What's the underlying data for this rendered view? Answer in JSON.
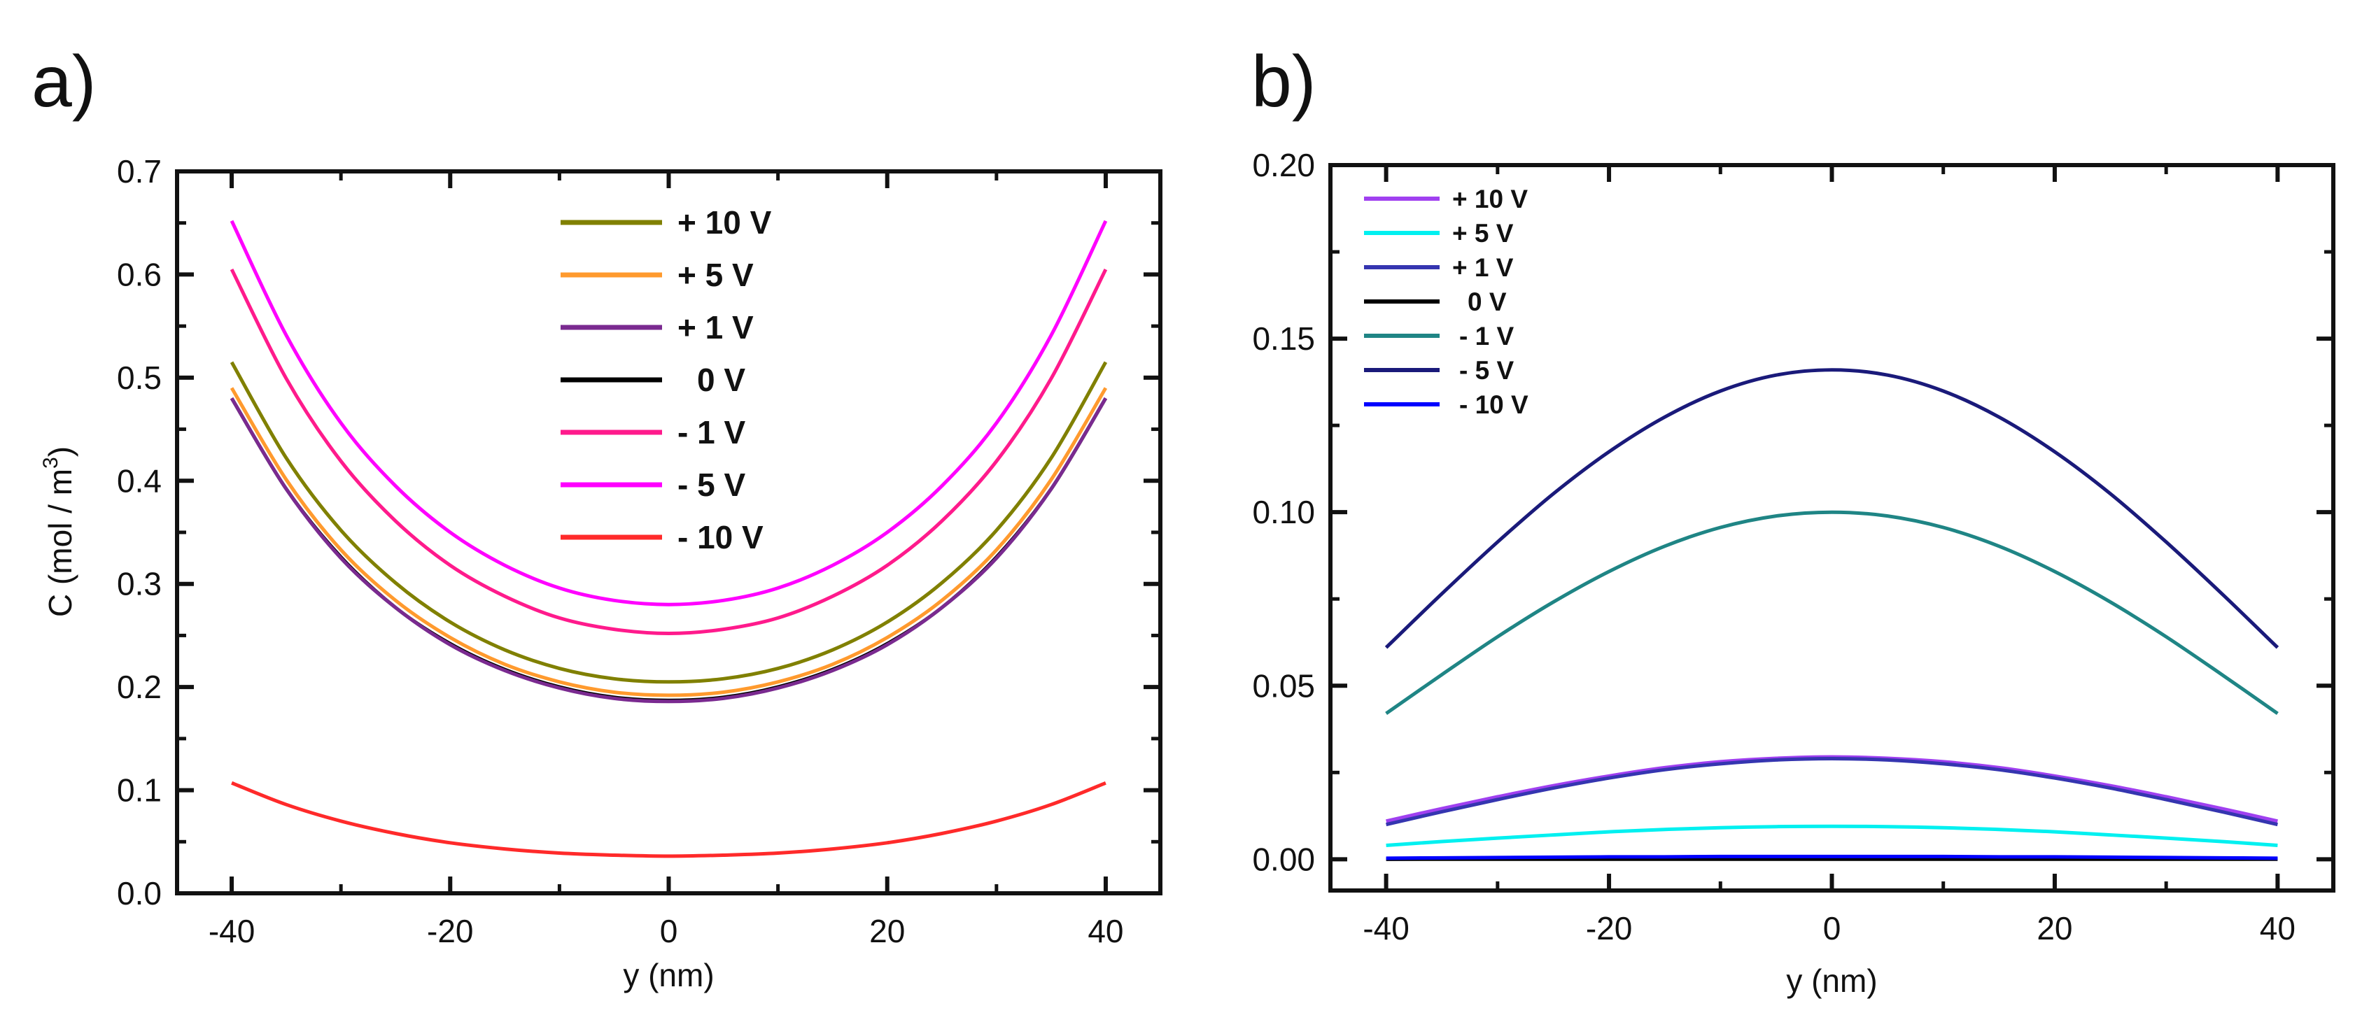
{
  "chart_data": [
    {
      "panel_label": "a)",
      "type": "line",
      "title": "",
      "xlabel": "y (nm)",
      "ylabel": "C (mol / m",
      "ylabel_superscript": "3",
      "ylabel_suffix": ")",
      "xlim": [
        -45,
        45
      ],
      "ylim": [
        0,
        0.7
      ],
      "xticks": [
        -40,
        -20,
        0,
        20,
        40
      ],
      "xtick_labels": [
        "-40",
        "-20",
        "0",
        "20",
        "40"
      ],
      "yticks": [
        0,
        0.1,
        0.2,
        0.3,
        0.4,
        0.5,
        0.6,
        0.7
      ],
      "ytick_labels": [
        "0.0",
        "0.1",
        "0.2",
        "0.3",
        "0.4",
        "0.5",
        "0.6",
        "0.7"
      ],
      "grid": false,
      "legend_position": "top-center",
      "x": [
        -40,
        -35,
        -30,
        -25,
        -20,
        -15,
        -10,
        -5,
        0,
        5,
        10,
        15,
        20,
        25,
        30,
        35,
        40
      ],
      "series": [
        {
          "name": "+ 10 V",
          "color": "#808000",
          "values": [
            0.515,
            0.422,
            0.352,
            0.301,
            0.263,
            0.236,
            0.218,
            0.208,
            0.205,
            0.208,
            0.218,
            0.236,
            0.263,
            0.301,
            0.352,
            0.422,
            0.515
          ]
        },
        {
          "name": "+ 5 V",
          "color": "#ff9a2e",
          "values": [
            0.49,
            0.401,
            0.333,
            0.284,
            0.248,
            0.222,
            0.205,
            0.195,
            0.192,
            0.195,
            0.205,
            0.222,
            0.248,
            0.284,
            0.333,
            0.401,
            0.49
          ]
        },
        {
          "name": "0 V",
          "color": "#000000",
          "values": [
            0.48,
            0.392,
            0.326,
            0.277,
            0.242,
            0.217,
            0.2,
            0.19,
            0.187,
            0.19,
            0.2,
            0.217,
            0.242,
            0.277,
            0.326,
            0.392,
            0.48
          ]
        },
        {
          "name": "+ 1 V",
          "color": "#7a2a90",
          "values": [
            0.48,
            0.392,
            0.325,
            0.277,
            0.241,
            0.216,
            0.199,
            0.189,
            0.186,
            0.189,
            0.199,
            0.216,
            0.241,
            0.277,
            0.325,
            0.392,
            0.48
          ]
        },
        {
          "name": "- 1 V",
          "color": "#ff1a8c",
          "values": [
            0.605,
            0.499,
            0.419,
            0.361,
            0.318,
            0.288,
            0.267,
            0.256,
            0.252,
            0.256,
            0.267,
            0.288,
            0.318,
            0.361,
            0.419,
            0.499,
            0.605
          ]
        },
        {
          "name": "- 5 V",
          "color": "#ff00ff",
          "values": [
            0.652,
            0.541,
            0.456,
            0.395,
            0.35,
            0.318,
            0.296,
            0.284,
            0.28,
            0.284,
            0.296,
            0.318,
            0.35,
            0.395,
            0.456,
            0.541,
            0.652
          ]
        },
        {
          "name": "- 10 V",
          "color": "#ff2a2a",
          "values": [
            0.107,
            0.086,
            0.07,
            0.058,
            0.049,
            0.043,
            0.039,
            0.037,
            0.036,
            0.037,
            0.039,
            0.043,
            0.049,
            0.058,
            0.07,
            0.086,
            0.107
          ]
        }
      ],
      "legend_order": [
        "+ 10 V",
        "+ 5 V",
        "+ 1 V",
        "0 V",
        "- 1 V",
        "- 5 V",
        "- 10 V"
      ]
    },
    {
      "panel_label": "b)",
      "type": "line",
      "title": "",
      "xlabel": "y (nm)",
      "ylabel": "",
      "xlim": [
        -45,
        45
      ],
      "ylim": [
        -0.009,
        0.2
      ],
      "xticks": [
        -40,
        -20,
        0,
        20,
        40
      ],
      "xtick_labels": [
        "-40",
        "-20",
        "0",
        "20",
        "40"
      ],
      "yticks": [
        0,
        0.05,
        0.1,
        0.15,
        0.2
      ],
      "ytick_labels": [
        "0.00",
        "0.05",
        "0.10",
        "0.15",
        "0.20"
      ],
      "grid": false,
      "legend_position": "top-left",
      "x": [
        -40,
        -35,
        -30,
        -25,
        -20,
        -15,
        -10,
        -5,
        0,
        5,
        10,
        15,
        20,
        25,
        30,
        35,
        40
      ],
      "series": [
        {
          "name": "+ 10 V",
          "color": "#a040f0",
          "values": [
            0.011,
            0.0146,
            0.018,
            0.0212,
            0.024,
            0.0264,
            0.0281,
            0.0291,
            0.0295,
            0.0291,
            0.0281,
            0.0264,
            0.024,
            0.0212,
            0.018,
            0.0146,
            0.011
          ]
        },
        {
          "name": "+ 5 V",
          "color": "#00f0f0",
          "values": [
            0.004,
            0.0051,
            0.0061,
            0.007,
            0.0079,
            0.0086,
            0.0091,
            0.0094,
            0.0095,
            0.0094,
            0.0091,
            0.0086,
            0.0079,
            0.007,
            0.0061,
            0.0051,
            0.004
          ]
        },
        {
          "name": "+ 1 V",
          "color": "#3535b0",
          "values": [
            0.01,
            0.0137,
            0.0172,
            0.0205,
            0.0234,
            0.0258,
            0.0275,
            0.0286,
            0.029,
            0.0286,
            0.0275,
            0.0258,
            0.0234,
            0.0205,
            0.0172,
            0.0137,
            0.01
          ]
        },
        {
          "name": "0 V",
          "color": "#000000",
          "values": [
            0,
            0,
            0,
            0,
            0,
            0,
            0,
            0,
            0,
            0,
            0,
            0,
            0,
            0,
            0,
            0,
            0
          ]
        },
        {
          "name": "- 1 V",
          "color": "#1f8585",
          "values": [
            0.042,
            0.0532,
            0.0641,
            0.0741,
            0.0829,
            0.0902,
            0.0956,
            0.0989,
            0.1,
            0.0989,
            0.0956,
            0.0902,
            0.0829,
            0.0741,
            0.0641,
            0.0532,
            0.042
          ]
        },
        {
          "name": "- 10 V",
          "color": "#0000ff",
          "values": [
            0.0003,
            0.0004,
            0.0005,
            0.0006,
            0.0007,
            0.0007,
            0.0008,
            0.0008,
            0.0008,
            0.0008,
            0.0008,
            0.0007,
            0.0007,
            0.0006,
            0.0005,
            0.0004,
            0.0003
          ]
        },
        {
          "name": "- 5 V",
          "color": "#1a1a7a",
          "values": [
            0.061,
            0.0765,
            0.0914,
            0.1053,
            0.1174,
            0.1274,
            0.1349,
            0.1395,
            0.141,
            0.1395,
            0.1349,
            0.1274,
            0.1174,
            0.1053,
            0.0914,
            0.0765,
            0.061
          ]
        }
      ],
      "legend_order": [
        "+ 10 V",
        "+ 5 V",
        "+ 1 V",
        "0 V",
        "- 1 V",
        "- 5 V",
        "- 10 V"
      ]
    }
  ]
}
